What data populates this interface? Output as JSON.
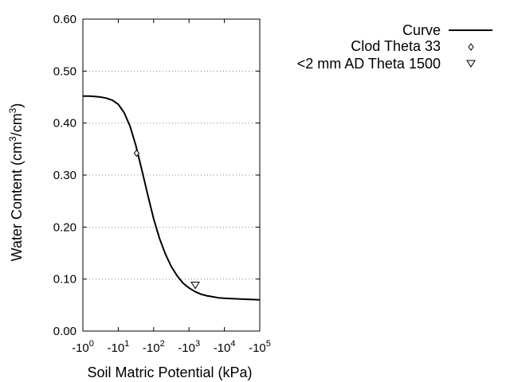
{
  "chart_data": {
    "type": "line",
    "xlabel": "Soil Matric Potential (kPa)",
    "ylabel": {
      "prefix": "Water Content (cm",
      "sup1": "3",
      "middle": "/cm",
      "sup2": "3",
      "suffix": ")"
    },
    "x_scale": "log",
    "x_axis_note": "values are suction magnitudes; tick labels printed as negatives",
    "xlim": [
      1,
      100000
    ],
    "ylim": [
      0.0,
      0.6
    ],
    "x_ticks": [
      {
        "value": 1,
        "base": "-10",
        "exp": "0"
      },
      {
        "value": 10,
        "base": "-10",
        "exp": "1"
      },
      {
        "value": 100,
        "base": "-10",
        "exp": "2"
      },
      {
        "value": 1000,
        "base": "-10",
        "exp": "3"
      },
      {
        "value": 10000,
        "base": "-10",
        "exp": "4"
      },
      {
        "value": 100000,
        "base": "-10",
        "exp": "5"
      }
    ],
    "y_ticks": [
      {
        "value": 0.0,
        "label": "0.00"
      },
      {
        "value": 0.1,
        "label": "0.10"
      },
      {
        "value": 0.2,
        "label": "0.20"
      },
      {
        "value": 0.3,
        "label": "0.30"
      },
      {
        "value": 0.4,
        "label": "0.40"
      },
      {
        "value": 0.5,
        "label": "0.50"
      },
      {
        "value": 0.6,
        "label": "0.60"
      }
    ],
    "grid": "horizontal dotted",
    "legend_position": "top-right",
    "series": [
      {
        "name": "Curve",
        "kind": "line",
        "color": "#000000",
        "x": [
          1,
          1.5,
          2.2,
          3.2,
          4.6,
          6.8,
          10,
          14.7,
          21.5,
          31.6,
          46.4,
          68.1,
          100,
          147,
          215,
          316,
          464,
          681,
          1000,
          1468,
          2154,
          3162,
          4642,
          6813,
          10000,
          21544,
          46416,
          100000
        ],
        "y": [
          0.452,
          0.452,
          0.451,
          0.45,
          0.448,
          0.444,
          0.436,
          0.42,
          0.394,
          0.356,
          0.31,
          0.262,
          0.216,
          0.178,
          0.148,
          0.124,
          0.106,
          0.092,
          0.083,
          0.076,
          0.071,
          0.068,
          0.066,
          0.064,
          0.063,
          0.062,
          0.061,
          0.06
        ]
      },
      {
        "name": "Clod Theta 33",
        "kind": "scatter",
        "marker": "diamond",
        "color": "#000000",
        "points": [
          {
            "x": 33,
            "y": 0.342
          }
        ]
      },
      {
        "name": "<2 mm AD Theta 1500",
        "kind": "scatter",
        "marker": "triangle-down",
        "color": "#000000",
        "points": [
          {
            "x": 1500,
            "y": 0.088
          }
        ]
      }
    ]
  }
}
